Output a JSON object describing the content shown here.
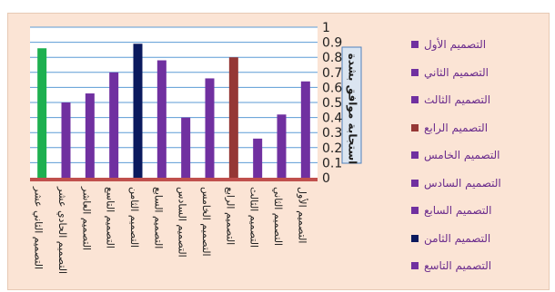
{
  "chart_data": {
    "type": "bar",
    "title": "",
    "xlabel": "",
    "ylabel": "استجابة موافق بشدة",
    "ylim": [
      0,
      1
    ],
    "yticks": [
      "0",
      "0.1",
      "0.2",
      "0.3",
      "0.4",
      "0.5",
      "0.6",
      "0.7",
      "0.8",
      "0.9",
      "1"
    ],
    "categories": [
      "التصميم الثاني عشر",
      "التصميم الحادي عشر",
      "التصميم العاشر",
      "التصميم التاسع",
      "التصميم الثامن",
      "التصميم السابع",
      "التصميم السادس",
      "التصميم الخامس",
      "التصميم الرابع",
      "التصميم الثالث",
      "التصميم الثاني",
      "التصميم الأول"
    ],
    "values": [
      0.86,
      0.5,
      0.56,
      0.7,
      0.89,
      0.78,
      0.4,
      0.66,
      0.8,
      0.26,
      0.42,
      0.64
    ],
    "bar_colors": [
      "#1eb050",
      "#7030a0",
      "#7030a0",
      "#7030a0",
      "#0b1a5e",
      "#7030a0",
      "#7030a0",
      "#7030a0",
      "#953735",
      "#7030a0",
      "#7030a0",
      "#7030a0"
    ],
    "grid": true,
    "legend_position": "right",
    "legend": [
      {
        "label": "التصميم الأول",
        "color": "#7030a0"
      },
      {
        "label": "التصميم الثاني",
        "color": "#7030a0"
      },
      {
        "label": "التصميم الثالث",
        "color": "#7030a0"
      },
      {
        "label": "التصميم الرابع",
        "color": "#953735"
      },
      {
        "label": "التصميم الخامس",
        "color": "#7030a0"
      },
      {
        "label": "التصميم السادس",
        "color": "#7030a0"
      },
      {
        "label": "التصميم السابع",
        "color": "#7030a0"
      },
      {
        "label": "التصميم الثامن",
        "color": "#0b1a5e"
      },
      {
        "label": "التصميم التاسع",
        "color": "#7030a0"
      }
    ],
    "colors": {
      "grid": "#5b9bd5",
      "baseline": "#c0504d",
      "axis_box": "#dbe5f1",
      "axis_box_border": "#4f81bd",
      "text": "#1f1f1f"
    }
  }
}
